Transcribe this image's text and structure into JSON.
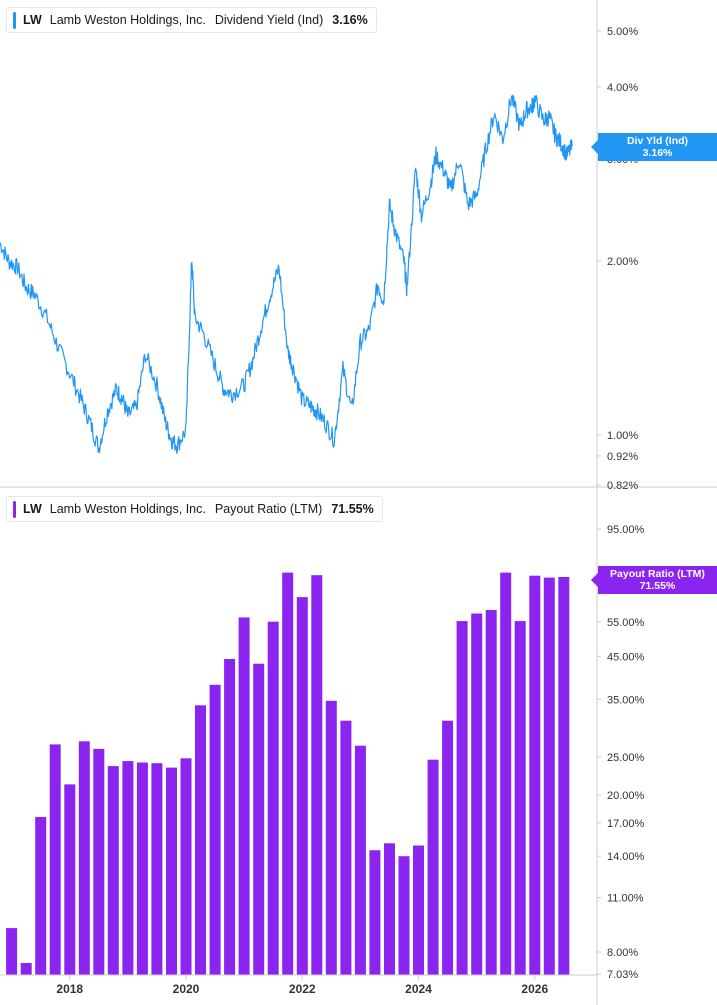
{
  "colors": {
    "yield_line": "#2196f3",
    "payout_bars": "#8c24f0",
    "axis": "#cccccc",
    "tick_text": "#333333"
  },
  "panels": {
    "top": {
      "legend": {
        "ticker": "LW",
        "company": "Lamb Weston Holdings, Inc.",
        "metric": "Dividend Yield (Ind)",
        "value": "3.16%"
      },
      "flag": {
        "label": "Div Yld (Ind)",
        "value": "3.16%"
      }
    },
    "bottom": {
      "legend": {
        "ticker": "LW",
        "company": "Lamb Weston Holdings, Inc.",
        "metric": "Payout Ratio (LTM)",
        "value": "71.55%"
      },
      "flag": {
        "label": "Payout Ratio (LTM)",
        "value": "71.55%"
      }
    }
  },
  "chart_data": [
    {
      "type": "line",
      "series": [
        {
          "name": "Dividend Yield (Ind)",
          "x": [
            2016.8,
            2016.95,
            2017.1,
            2017.25,
            2017.4,
            2017.6,
            2017.8,
            2018.0,
            2018.2,
            2018.35,
            2018.5,
            2018.65,
            2018.8,
            2018.9,
            2019.0,
            2019.15,
            2019.3,
            2019.5,
            2019.65,
            2019.75,
            2019.85,
            2020.0,
            2020.1,
            2020.15,
            2020.3,
            2020.5,
            2020.65,
            2020.8,
            2021.0,
            2021.15,
            2021.3,
            2021.45,
            2021.6,
            2021.75,
            2021.85,
            2022.0,
            2022.15,
            2022.25,
            2022.4,
            2022.55,
            2022.7,
            2022.85,
            2023.0,
            2023.15,
            2023.3,
            2023.4,
            2023.5,
            2023.6,
            2023.75,
            2023.8,
            2023.95,
            2024.05,
            2024.2,
            2024.3,
            2024.45,
            2024.55,
            2024.7,
            2024.85,
            2025.0,
            2025.15,
            2025.3,
            2025.45,
            2025.6,
            2025.75,
            2025.85,
            2025.95,
            2026.0,
            2026.15,
            2026.25,
            2026.35,
            2026.45,
            2026.55,
            2026.65
          ],
          "y": [
            2.15,
            2.0,
            1.95,
            1.8,
            1.75,
            1.6,
            1.42,
            1.28,
            1.15,
            1.05,
            0.95,
            1.1,
            1.2,
            1.16,
            1.08,
            1.12,
            1.38,
            1.22,
            1.05,
            0.98,
            0.96,
            1.02,
            2.02,
            1.6,
            1.5,
            1.32,
            1.2,
            1.18,
            1.22,
            1.35,
            1.55,
            1.75,
            1.95,
            1.4,
            1.3,
            1.15,
            1.12,
            1.1,
            1.05,
            0.98,
            1.3,
            1.1,
            1.45,
            1.52,
            1.82,
            1.7,
            2.5,
            2.25,
            2.0,
            1.78,
            2.9,
            2.4,
            2.7,
            3.05,
            2.85,
            2.65,
            3.0,
            2.5,
            2.6,
            3.1,
            3.6,
            3.25,
            3.85,
            3.4,
            3.65,
            3.7,
            3.8,
            3.5,
            3.55,
            3.3,
            3.2,
            3.05,
            3.16
          ],
          "values_unit": "%"
        }
      ],
      "yscale": "log",
      "ylim": [
        0.82,
        5.6
      ],
      "xlim": [
        2016.8,
        2026.95
      ],
      "y_ticks": [
        "5.00%",
        "4.00%",
        "3.00%",
        "2.00%",
        "1.00%",
        "0.92%",
        "0.82%"
      ]
    },
    {
      "type": "bar",
      "series": [
        {
          "name": "Payout Ratio (LTM)",
          "x": [
            2017.0,
            2017.25,
            2017.5,
            2017.75,
            2018.0,
            2018.25,
            2018.5,
            2018.75,
            2019.0,
            2019.25,
            2019.5,
            2019.75,
            2020.0,
            2020.25,
            2020.5,
            2020.75,
            2021.0,
            2021.25,
            2021.5,
            2021.75,
            2022.0,
            2022.25,
            2022.5,
            2022.75,
            2023.0,
            2023.25,
            2023.5,
            2023.75,
            2024.0,
            2024.25,
            2024.5,
            2024.75,
            2025.0,
            2025.25,
            2025.5,
            2025.75,
            2026.0,
            2026.25,
            2026.5
          ],
          "values": [
            9.2,
            7.5,
            17.6,
            26.9,
            21.3,
            27.4,
            26.2,
            23.7,
            24.4,
            24.2,
            24.1,
            23.5,
            24.8,
            33.8,
            38.1,
            44.3,
            56.5,
            43.1,
            55.1,
            73.4,
            63.6,
            72.3,
            34.7,
            30.9,
            26.7,
            14.5,
            15.1,
            14.0,
            14.9,
            24.6,
            30.9,
            55.3,
            57.8,
            59.0,
            73.4,
            55.3,
            72.1,
            71.3,
            71.55
          ]
        }
      ],
      "values_unit": "%",
      "yscale": "log",
      "ylim": [
        7.03,
        120
      ],
      "y_ticks": [
        "95.00%",
        "55.00%",
        "45.00%",
        "35.00%",
        "25.00%",
        "20.00%",
        "17.00%",
        "14.00%",
        "11.00%",
        "8.00%",
        "7.03%"
      ],
      "x_ticks": [
        "2018",
        "2020",
        "2022",
        "2024",
        "2026"
      ]
    }
  ]
}
